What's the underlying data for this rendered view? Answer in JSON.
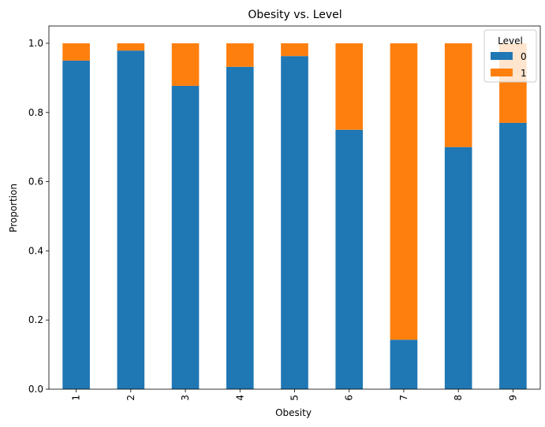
{
  "chart_data": {
    "type": "bar",
    "stacked": true,
    "title": "Obesity vs. Level",
    "xlabel": "Obesity",
    "ylabel": "Proportion",
    "categories": [
      "1",
      "2",
      "3",
      "4",
      "5",
      "6",
      "7",
      "8",
      "9"
    ],
    "series": [
      {
        "name": "0",
        "color": "#1f77b4",
        "values": [
          0.95,
          0.979,
          0.877,
          0.932,
          0.963,
          0.75,
          0.143,
          0.7,
          0.77
        ]
      },
      {
        "name": "1",
        "color": "#ff7f0e",
        "values": [
          0.05,
          0.021,
          0.123,
          0.068,
          0.037,
          0.25,
          0.857,
          0.3,
          0.23
        ]
      }
    ],
    "ylim": [
      0,
      1.05
    ],
    "yticks": [
      "0.0",
      "0.2",
      "0.4",
      "0.6",
      "0.8",
      "1.0"
    ],
    "legend": {
      "title": "Level",
      "placement": "upper-right"
    },
    "grid": false
  }
}
